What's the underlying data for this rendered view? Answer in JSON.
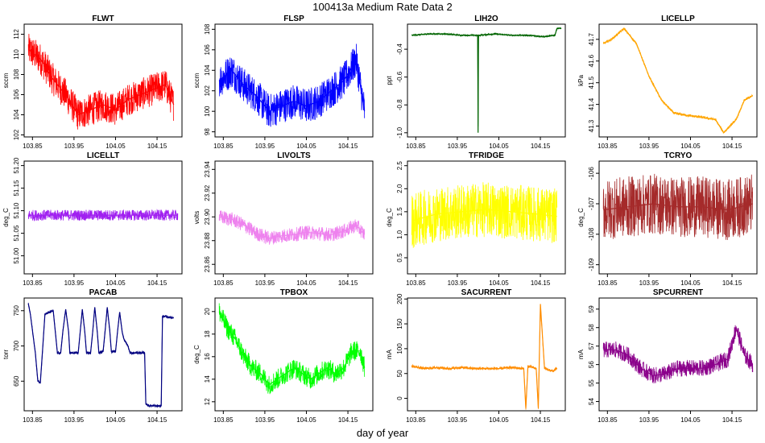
{
  "title": "100413a   Medium Rate Data 2",
  "xlabel": "day of year",
  "chart_data": [
    {
      "type": "line",
      "title": "FLWT",
      "ylabel": "sccm",
      "color": "#ff0000",
      "xlim": [
        103.83,
        104.21
      ],
      "ylim": [
        101.8,
        113
      ],
      "xticks": [
        "103.85",
        "103.95",
        "104.05",
        "104.15"
      ],
      "yticks": [
        "102",
        "104",
        "106",
        "108",
        "110",
        "112"
      ],
      "series": [
        {
          "x": [
            103.84,
            103.87,
            103.9,
            103.93,
            103.96,
            103.99,
            104.02,
            104.05,
            104.08,
            104.11,
            104.14,
            104.17,
            104.19
          ],
          "values": [
            110.5,
            109.5,
            107.5,
            106,
            104,
            104.5,
            105,
            104.5,
            105.5,
            106,
            106.5,
            107,
            105
          ]
        }
      ]
    },
    {
      "type": "line",
      "title": "FLSP",
      "ylabel": "sccm",
      "color": "#0000ff",
      "xlim": [
        103.83,
        104.21
      ],
      "ylim": [
        97.5,
        108.5
      ],
      "xticks": [
        "103.85",
        "103.95",
        "104.05",
        "104.15"
      ],
      "yticks": [
        "98",
        "100",
        "102",
        "104",
        "106",
        "108"
      ],
      "series": [
        {
          "x": [
            103.84,
            103.87,
            103.9,
            103.93,
            103.96,
            103.99,
            104.02,
            104.05,
            104.08,
            104.11,
            104.14,
            104.17,
            104.19
          ],
          "values": [
            103,
            104,
            102.5,
            101.5,
            100,
            100.5,
            101,
            100.5,
            101,
            102,
            103,
            105,
            100
          ]
        }
      ]
    },
    {
      "type": "line",
      "title": "LIH2O",
      "ylabel": "ppt",
      "color": "#006400",
      "xlim": [
        103.83,
        104.21
      ],
      "ylim": [
        -1.03,
        -0.22
      ],
      "xticks": [
        "103.85",
        "103.95",
        "104.05",
        "104.15"
      ],
      "yticks": [
        "-1.0",
        "-0.8",
        "-0.6",
        "-0.4"
      ],
      "series": [
        {
          "x": [
            103.84,
            103.88,
            103.92,
            103.96,
            103.999,
            104.0,
            104.001,
            104.04,
            104.08,
            104.12,
            104.16,
            104.185,
            104.19,
            104.2
          ],
          "values": [
            -0.3,
            -0.29,
            -0.29,
            -0.3,
            -0.3,
            -1.0,
            -0.3,
            -0.29,
            -0.3,
            -0.3,
            -0.31,
            -0.3,
            -0.25,
            -0.25
          ]
        }
      ]
    },
    {
      "type": "line",
      "title": "LICELLP",
      "ylabel": "kPa",
      "color": "#ffa500",
      "xlim": [
        103.83,
        104.21
      ],
      "ylim": [
        41.25,
        41.77
      ],
      "xticks": [
        "103.85",
        "103.95",
        "104.05",
        "104.15"
      ],
      "yticks": [
        "41.3",
        "41.4",
        "41.5",
        "41.6",
        "41.7"
      ],
      "series": [
        {
          "x": [
            103.84,
            103.86,
            103.89,
            103.92,
            103.95,
            103.98,
            104.01,
            104.04,
            104.08,
            104.11,
            104.13,
            104.16,
            104.18,
            104.2
          ],
          "values": [
            41.68,
            41.7,
            41.75,
            41.68,
            41.53,
            41.42,
            41.36,
            41.35,
            41.34,
            41.33,
            41.27,
            41.33,
            41.42,
            41.44
          ]
        }
      ]
    },
    {
      "type": "line",
      "title": "LICELLT",
      "ylabel": "deg_C",
      "color": "#a020f0",
      "xlim": [
        103.83,
        104.21
      ],
      "ylim": [
        50.96,
        51.21
      ],
      "xticks": [
        "103.85",
        "103.95",
        "104.05",
        "104.15"
      ],
      "yticks": [
        "51.00",
        "51.05",
        "51.10",
        "51.15",
        "51.20"
      ],
      "series": [
        {
          "x": [
            103.84,
            103.9,
            103.96,
            104.02,
            104.08,
            104.14,
            104.2
          ],
          "values": [
            51.09,
            51.09,
            51.09,
            51.09,
            51.09,
            51.09,
            51.09
          ]
        }
      ]
    },
    {
      "type": "line",
      "title": "LIVOLTS",
      "ylabel": "volts",
      "color": "#ee82ee",
      "xlim": [
        103.83,
        104.21
      ],
      "ylim": [
        23.852,
        23.947
      ],
      "xticks": [
        "103.85",
        "103.95",
        "104.05",
        "104.15"
      ],
      "yticks": [
        "23.86",
        "23.88",
        "23.90",
        "23.92",
        "23.94"
      ],
      "series": [
        {
          "x": [
            103.84,
            103.87,
            103.9,
            103.93,
            103.96,
            103.99,
            104.02,
            104.05,
            104.08,
            104.11,
            104.14,
            104.17,
            104.19
          ],
          "values": [
            23.9,
            23.898,
            23.893,
            23.886,
            23.882,
            23.884,
            23.885,
            23.887,
            23.886,
            23.885,
            23.888,
            23.893,
            23.885
          ]
        }
      ]
    },
    {
      "type": "line",
      "title": "TFRIDGE",
      "ylabel": "deg_C",
      "color": "#ffff00",
      "xlim": [
        103.83,
        104.21
      ],
      "ylim": [
        0.15,
        2.6
      ],
      "xticks": [
        "103.85",
        "103.95",
        "104.05",
        "104.15"
      ],
      "yticks": [
        "0.5",
        "1.0",
        "1.5",
        "2.0",
        "2.5"
      ],
      "series": [
        {
          "x": [
            103.84,
            103.9,
            103.96,
            104.02,
            104.08,
            104.14,
            104.19
          ],
          "values": [
            1.3,
            1.45,
            1.5,
            1.55,
            1.5,
            1.45,
            1.4
          ]
        }
      ]
    },
    {
      "type": "line",
      "title": "TCRYO",
      "ylabel": "deg_C",
      "color": "#a52a2a",
      "xlim": [
        103.83,
        104.21
      ],
      "ylim": [
        -109.3,
        -105.6
      ],
      "xticks": [
        "103.85",
        "103.95",
        "104.05",
        "104.15"
      ],
      "yticks": [
        "-109",
        "-108",
        "-107",
        "-106"
      ],
      "series": [
        {
          "x": [
            103.84,
            103.9,
            103.96,
            104.02,
            104.08,
            104.14,
            104.2
          ],
          "values": [
            -107.2,
            -107.1,
            -107.0,
            -107.1,
            -107.1,
            -107.2,
            -107.0
          ]
        }
      ]
    },
    {
      "type": "line",
      "title": "PACAB",
      "ylabel": "torr",
      "color": "#000080",
      "xlim": [
        103.83,
        104.21
      ],
      "ylim": [
        608,
        768
      ],
      "xticks": [
        "103.85",
        "103.95",
        "104.05",
        "104.15"
      ],
      "yticks": [
        "650",
        "700",
        "750"
      ],
      "series": [
        {
          "x": [
            103.84,
            103.845,
            103.857,
            103.863,
            103.869,
            103.875,
            103.88,
            103.9,
            103.905,
            103.91,
            103.918,
            103.923,
            103.93,
            103.937,
            103.94,
            103.96,
            103.965,
            103.97,
            103.976,
            103.98,
            103.99,
            103.995,
            104.0,
            104.006,
            104.01,
            104.02,
            104.025,
            104.03,
            104.036,
            104.04,
            104.05,
            104.055,
            104.06,
            104.066,
            104.07,
            104.08,
            104.085,
            104.09,
            104.1,
            104.12,
            104.123,
            104.13,
            104.15,
            104.16,
            104.163,
            104.17,
            104.19
          ],
          "values": [
            760,
            745,
            690,
            650,
            648,
            700,
            745,
            750,
            720,
            690,
            690,
            720,
            752,
            720,
            690,
            690,
            720,
            752,
            720,
            690,
            690,
            720,
            755,
            720,
            690,
            692,
            722,
            755,
            722,
            692,
            692,
            722,
            748,
            720,
            710,
            700,
            690,
            690,
            690,
            690,
            618,
            615,
            615,
            615,
            742,
            742,
            740
          ]
        }
      ]
    },
    {
      "type": "line",
      "title": "TPBOX",
      "ylabel": "deg_C",
      "color": "#00ff00",
      "xlim": [
        103.83,
        104.21
      ],
      "ylim": [
        11.2,
        21.2
      ],
      "xticks": [
        "103.85",
        "103.95",
        "104.05",
        "104.15"
      ],
      "yticks": [
        "12",
        "14",
        "16",
        "18",
        "20"
      ],
      "series": [
        {
          "x": [
            103.84,
            103.86,
            103.88,
            103.9,
            103.92,
            103.94,
            103.96,
            103.98,
            104.0,
            104.02,
            104.04,
            104.06,
            104.08,
            104.1,
            104.12,
            104.14,
            104.16,
            104.18,
            104.19
          ],
          "values": [
            20,
            18.5,
            17.5,
            16,
            15,
            14.5,
            13.5,
            14,
            14.5,
            15,
            14.5,
            14,
            14.5,
            15,
            14.5,
            15,
            16.5,
            16.5,
            15
          ]
        }
      ]
    },
    {
      "type": "line",
      "title": "SACURRENT",
      "ylabel": "mA",
      "color": "#ff8c00",
      "xlim": [
        103.83,
        104.21
      ],
      "ylim": [
        -25,
        202
      ],
      "xticks": [
        "103.85",
        "103.95",
        "104.05",
        "104.15"
      ],
      "yticks": [
        "0",
        "50",
        "100",
        "150",
        "200"
      ],
      "series": [
        {
          "x": [
            103.84,
            103.87,
            103.9,
            103.93,
            103.96,
            103.99,
            104.02,
            104.05,
            104.08,
            104.11,
            104.115,
            104.12,
            104.14,
            104.145,
            104.15,
            104.16,
            104.18,
            104.19
          ],
          "values": [
            65,
            60,
            62,
            60,
            62,
            60,
            60,
            60,
            62,
            60,
            -20,
            65,
            60,
            -20,
            190,
            60,
            55,
            60
          ]
        }
      ]
    },
    {
      "type": "line",
      "title": "SPCURRENT",
      "ylabel": "mA",
      "color": "#8b008b",
      "xlim": [
        103.83,
        104.21
      ],
      "ylim": [
        53.5,
        59.6
      ],
      "xticks": [
        "103.85",
        "103.95",
        "104.05",
        "104.15"
      ],
      "yticks": [
        "54",
        "55",
        "56",
        "57",
        "58",
        "59"
      ],
      "series": [
        {
          "x": [
            103.84,
            103.87,
            103.9,
            103.93,
            103.96,
            103.99,
            104.02,
            104.05,
            104.08,
            104.11,
            104.14,
            104.16,
            104.18,
            104.2
          ],
          "values": [
            56.8,
            56.8,
            56.5,
            55.8,
            55.4,
            55.5,
            55.8,
            55.8,
            55.8,
            56,
            56.3,
            58,
            56.5,
            56
          ]
        }
      ]
    }
  ]
}
